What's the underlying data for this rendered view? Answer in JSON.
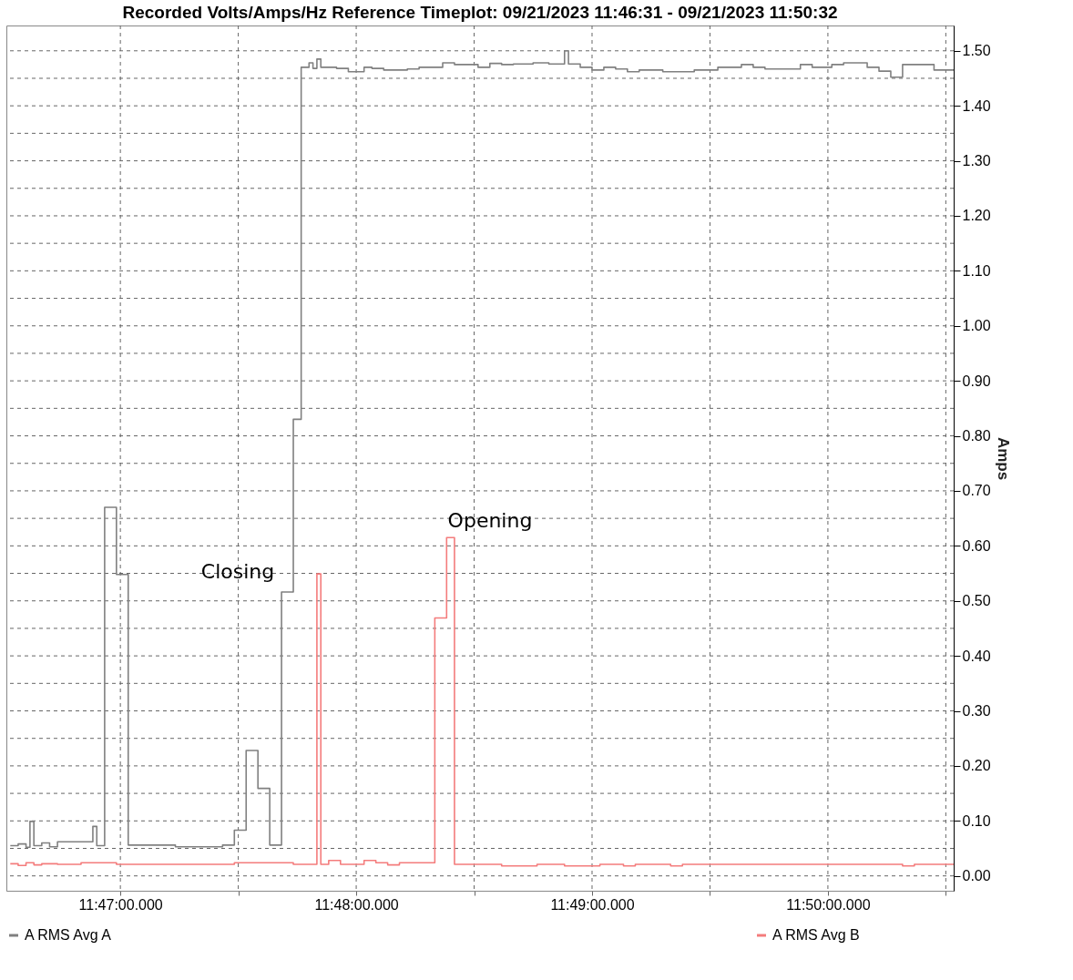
{
  "chart_data": {
    "type": "step",
    "title": "Recorded Volts/Amps/Hz Reference Timeplot: 09/21/2023 11:46:31 - 09/21/2023 11:50:32",
    "ylabel": "Amps",
    "xlim": [
      "2023-09-21T11:46:31",
      "2023-09-21T11:50:32"
    ],
    "ylim": [
      -0.027,
      1.546
    ],
    "xticks": [
      {
        "value": "2023-09-21T11:47:00",
        "label": "11:47:00.000"
      },
      {
        "value": "2023-09-21T11:47:30",
        "label": null
      },
      {
        "value": "2023-09-21T11:48:00",
        "label": "11:48:00.000"
      },
      {
        "value": "2023-09-21T11:48:30",
        "label": null
      },
      {
        "value": "2023-09-21T11:49:00",
        "label": "11:49:00.000"
      },
      {
        "value": "2023-09-21T11:49:30",
        "label": null
      },
      {
        "value": "2023-09-21T11:50:00",
        "label": "11:50:00.000"
      },
      {
        "value": "2023-09-21T11:50:30",
        "label": null
      }
    ],
    "yticks": [
      {
        "value": 0,
        "label": "0.00"
      },
      {
        "value": 0.05,
        "label": null
      },
      {
        "value": 0.1,
        "label": "0.10"
      },
      {
        "value": 0.15,
        "label": null
      },
      {
        "value": 0.2,
        "label": "0.20"
      },
      {
        "value": 0.25,
        "label": null
      },
      {
        "value": 0.3,
        "label": "0.30"
      },
      {
        "value": 0.35,
        "label": null
      },
      {
        "value": 0.4,
        "label": "0.40"
      },
      {
        "value": 0.45,
        "label": null
      },
      {
        "value": 0.5,
        "label": "0.50"
      },
      {
        "value": 0.55,
        "label": null
      },
      {
        "value": 0.6,
        "label": "0.60"
      },
      {
        "value": 0.65,
        "label": null
      },
      {
        "value": 0.7,
        "label": "0.70"
      },
      {
        "value": 0.75,
        "label": null
      },
      {
        "value": 0.8,
        "label": "0.80"
      },
      {
        "value": 0.85,
        "label": null
      },
      {
        "value": 0.9,
        "label": "0.90"
      },
      {
        "value": 0.95,
        "label": null
      },
      {
        "value": 1.0,
        "label": "1.00"
      },
      {
        "value": 1.05,
        "label": null
      },
      {
        "value": 1.1,
        "label": "1.10"
      },
      {
        "value": 1.15,
        "label": null
      },
      {
        "value": 1.2,
        "label": "1.20"
      },
      {
        "value": 1.25,
        "label": null
      },
      {
        "value": 1.3,
        "label": "1.30"
      },
      {
        "value": 1.35,
        "label": null
      },
      {
        "value": 1.4,
        "label": "1.40"
      },
      {
        "value": 1.45,
        "label": null
      },
      {
        "value": 1.5,
        "label": "1.50"
      }
    ],
    "grid": true,
    "legend": "bottom",
    "line_style": "solid",
    "annotations": [
      "Closing",
      "Opening"
    ],
    "series": [
      {
        "name": "A RMS Avg A",
        "color": "#808080",
        "x": [
          "2023-09-21T11:46:32",
          "2023-09-21T11:46:34",
          "2023-09-21T11:46:36",
          "2023-09-21T11:46:37",
          "2023-09-21T11:46:38",
          "2023-09-21T11:46:40",
          "2023-09-21T11:46:42",
          "2023-09-21T11:46:44",
          "2023-09-21T11:46:53",
          "2023-09-21T11:46:54",
          "2023-09-21T11:46:56",
          "2023-09-21T11:46:59",
          "2023-09-21T11:47:02",
          "2023-09-21T11:47:14",
          "2023-09-21T11:47:26",
          "2023-09-21T11:47:29",
          "2023-09-21T11:47:32",
          "2023-09-21T11:47:35",
          "2023-09-21T11:47:38",
          "2023-09-21T11:47:41",
          "2023-09-21T11:47:44",
          "2023-09-21T11:47:46",
          "2023-09-21T11:47:48",
          "2023-09-21T11:47:49",
          "2023-09-21T11:47:50",
          "2023-09-21T11:47:51",
          "2023-09-21T11:47:55",
          "2023-09-21T11:47:58",
          "2023-09-21T11:48:02",
          "2023-09-21T11:48:04",
          "2023-09-21T11:48:07",
          "2023-09-21T11:48:13",
          "2023-09-21T11:48:16",
          "2023-09-21T11:48:22",
          "2023-09-21T11:48:25",
          "2023-09-21T11:48:31",
          "2023-09-21T11:48:34",
          "2023-09-21T11:48:37",
          "2023-09-21T11:48:40",
          "2023-09-21T11:48:45",
          "2023-09-21T11:48:49",
          "2023-09-21T11:48:53",
          "2023-09-21T11:48:54",
          "2023-09-21T11:48:57",
          "2023-09-21T11:49:00",
          "2023-09-21T11:49:03",
          "2023-09-21T11:49:06",
          "2023-09-21T11:49:09",
          "2023-09-21T11:49:12",
          "2023-09-21T11:49:18",
          "2023-09-21T11:49:26",
          "2023-09-21T11:49:32",
          "2023-09-21T11:49:38",
          "2023-09-21T11:49:41",
          "2023-09-21T11:49:44",
          "2023-09-21T11:49:53",
          "2023-09-21T11:49:56",
          "2023-09-21T11:50:01",
          "2023-09-21T11:50:04",
          "2023-09-21T11:50:10",
          "2023-09-21T11:50:13",
          "2023-09-21T11:50:16",
          "2023-09-21T11:50:19",
          "2023-09-21T11:50:27",
          "2023-09-21T11:50:32"
        ],
        "values": [
          0.055,
          0.058,
          0.052,
          0.099,
          0.055,
          0.06,
          0.053,
          0.062,
          0.09,
          0.055,
          0.67,
          0.548,
          0.056,
          0.053,
          0.056,
          0.083,
          0.228,
          0.159,
          0.056,
          0.516,
          0.83,
          1.47,
          1.478,
          1.468,
          1.485,
          1.47,
          1.468,
          1.462,
          1.47,
          1.468,
          1.465,
          1.467,
          1.47,
          1.478,
          1.475,
          1.47,
          1.477,
          1.475,
          1.476,
          1.478,
          1.476,
          1.5,
          1.476,
          1.47,
          1.465,
          1.47,
          1.467,
          1.462,
          1.465,
          1.462,
          1.465,
          1.47,
          1.475,
          1.47,
          1.467,
          1.475,
          1.47,
          1.475,
          1.478,
          1.47,
          1.463,
          1.452,
          1.475,
          1.465,
          1.465
        ]
      },
      {
        "name": "A RMS Avg B",
        "color": "#f47c7c",
        "x": [
          "2023-09-21T11:46:32",
          "2023-09-21T11:46:34",
          "2023-09-21T11:46:36",
          "2023-09-21T11:46:38",
          "2023-09-21T11:46:40",
          "2023-09-21T11:46:44",
          "2023-09-21T11:46:50",
          "2023-09-21T11:46:59",
          "2023-09-21T11:47:29",
          "2023-09-21T11:47:44",
          "2023-09-21T11:47:50",
          "2023-09-21T11:47:51",
          "2023-09-21T11:47:53",
          "2023-09-21T11:47:56",
          "2023-09-21T11:48:02",
          "2023-09-21T11:48:05",
          "2023-09-21T11:48:08",
          "2023-09-21T11:48:11",
          "2023-09-21T11:48:20",
          "2023-09-21T11:48:23",
          "2023-09-21T11:48:25",
          "2023-09-21T11:48:37",
          "2023-09-21T11:48:46",
          "2023-09-21T11:48:53",
          "2023-09-21T11:49:02",
          "2023-09-21T11:49:08",
          "2023-09-21T11:49:11",
          "2023-09-21T11:49:20",
          "2023-09-21T11:49:23",
          "2023-09-21T11:50:19",
          "2023-09-21T11:50:22",
          "2023-09-21T11:50:32"
        ],
        "values": [
          0.022,
          0.019,
          0.024,
          0.02,
          0.022,
          0.021,
          0.024,
          0.021,
          0.024,
          0.021,
          0.549,
          0.021,
          0.028,
          0.021,
          0.028,
          0.024,
          0.02,
          0.024,
          0.469,
          0.615,
          0.021,
          0.018,
          0.021,
          0.018,
          0.021,
          0.018,
          0.021,
          0.018,
          0.021,
          0.018,
          0.021,
          0.021
        ]
      }
    ]
  }
}
